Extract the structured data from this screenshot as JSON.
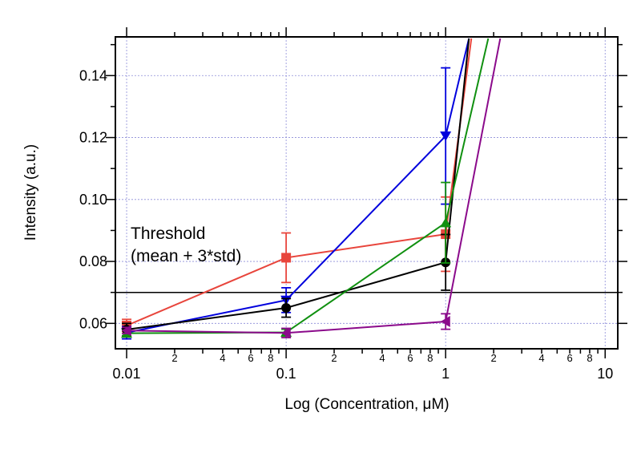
{
  "chart_data": {
    "type": "line",
    "xlabel": "Log (Concentration, μM)",
    "ylabel": "Intensity (a.u.)",
    "xscale": "log",
    "xlim": [
      0.0085,
      12
    ],
    "ylim": [
      0.0518,
      0.1525
    ],
    "grid": true,
    "x_ticks": [
      {
        "value": 0.01,
        "label": "0.01"
      },
      {
        "value": 0.1,
        "label": "0.1"
      },
      {
        "value": 1,
        "label": "1"
      },
      {
        "value": 10,
        "label": "10"
      }
    ],
    "x_minor_ticks": [
      {
        "value": 0.02,
        "label": "2"
      },
      {
        "value": 0.04,
        "label": "4"
      },
      {
        "value": 0.06,
        "label": "6"
      },
      {
        "value": 0.08,
        "label": "8"
      },
      {
        "value": 0.2,
        "label": "2"
      },
      {
        "value": 0.4,
        "label": "4"
      },
      {
        "value": 0.6,
        "label": "6"
      },
      {
        "value": 0.8,
        "label": "8"
      },
      {
        "value": 2,
        "label": "2"
      },
      {
        "value": 4,
        "label": "4"
      },
      {
        "value": 6,
        "label": "6"
      },
      {
        "value": 8,
        "label": "8"
      }
    ],
    "y_ticks": [
      {
        "value": 0.06,
        "label": "0.06"
      },
      {
        "value": 0.08,
        "label": "0.08"
      },
      {
        "value": 0.1,
        "label": "0.10"
      },
      {
        "value": 0.12,
        "label": "0.12"
      },
      {
        "value": 0.14,
        "label": "0.14"
      }
    ],
    "threshold": {
      "value": 0.07,
      "label_line1": "Threshold",
      "label_line2": "(mean + 3*std)"
    },
    "series": [
      {
        "color": "#e8453c",
        "marker": "square",
        "x": [
          0.01,
          0.1,
          1,
          1.45
        ],
        "y": [
          0.0593,
          0.0812,
          0.0888,
          0.152
        ],
        "err": [
          0.002,
          0.008,
          0.012,
          null
        ]
      },
      {
        "color": "#0000dd",
        "marker": "triangle-down",
        "x": [
          0.01,
          0.1,
          1,
          1.4
        ],
        "y": [
          0.057,
          0.0675,
          0.1205,
          0.152
        ],
        "err": [
          0.002,
          0.004,
          0.022,
          null
        ]
      },
      {
        "color": "#000000",
        "marker": "circle",
        "x": [
          0.01,
          0.1,
          1,
          1.4
        ],
        "y": [
          0.058,
          0.065,
          0.0797,
          0.152
        ],
        "err": [
          0.002,
          0.003,
          0.009,
          null
        ]
      },
      {
        "color": "#109010",
        "marker": "triangle-up",
        "x": [
          0.01,
          0.1,
          1,
          1.85
        ],
        "y": [
          0.0568,
          0.0571,
          0.0925,
          0.152
        ],
        "err": [
          0.001,
          0.001,
          0.013,
          null
        ]
      },
      {
        "color": "#8b0a8b",
        "marker": "triangle-left",
        "x": [
          0.01,
          0.1,
          1,
          2.2
        ],
        "y": [
          0.0577,
          0.0569,
          0.0606,
          0.152
        ],
        "err": [
          0.001,
          0.0015,
          0.0025,
          null
        ]
      }
    ]
  }
}
